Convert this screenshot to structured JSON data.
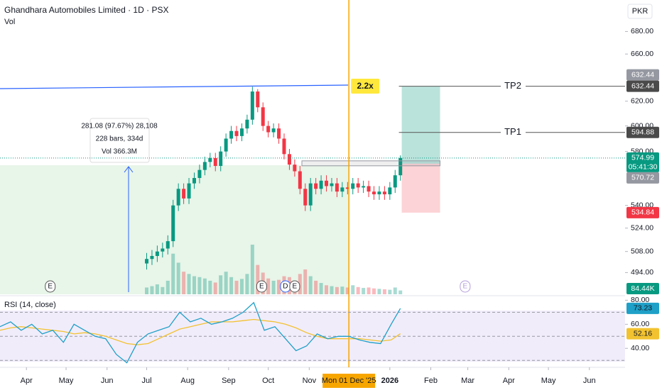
{
  "header": {
    "title": "Ghandhara Automobiles Limited · 1D · PSX",
    "volume_label": "Vol",
    "currency": "PKR",
    "rsi_label": "RSI (14, close)"
  },
  "chart_data": {
    "type": "candlestick",
    "xlim": [
      0,
      473
    ],
    "ylim": [
      480,
      709
    ],
    "log_scale": true,
    "yticks": [
      {
        "value": 680,
        "label": "680.00"
      },
      {
        "value": 660,
        "label": "660.00"
      },
      {
        "value": 620,
        "label": "620.00"
      },
      {
        "value": 600,
        "label": "600.00"
      },
      {
        "value": 580,
        "label": "580.00"
      },
      {
        "value": 540,
        "label": "540.00"
      },
      {
        "value": 524,
        "label": "524.00"
      },
      {
        "value": 508,
        "label": "508.00"
      },
      {
        "value": 494,
        "label": "494.00"
      }
    ],
    "xticks": [
      {
        "value": 20,
        "label": "Apr"
      },
      {
        "value": 50,
        "label": "May"
      },
      {
        "value": 81,
        "label": "Jun"
      },
      {
        "value": 111,
        "label": "Jul"
      },
      {
        "value": 142,
        "label": "Aug"
      },
      {
        "value": 173,
        "label": "Sep"
      },
      {
        "value": 203,
        "label": "Oct"
      },
      {
        "value": 234,
        "label": "Nov"
      },
      {
        "value": 295,
        "label": "2026"
      },
      {
        "value": 326,
        "label": "Feb"
      },
      {
        "value": 354,
        "label": "Mar"
      },
      {
        "value": 385,
        "label": "Apr"
      },
      {
        "value": 415,
        "label": "May"
      },
      {
        "value": 446,
        "label": "Jun"
      }
    ],
    "candles": {
      "up_color": "#089981",
      "down_color": "#f23645",
      "x": [
        111,
        115,
        119,
        123,
        127,
        131,
        135,
        139,
        143,
        147,
        151,
        155,
        159,
        163,
        167,
        171,
        175,
        179,
        183,
        187,
        191,
        195,
        199,
        203,
        207,
        211,
        215,
        219,
        223,
        227,
        231,
        235,
        239,
        243,
        247,
        251,
        255,
        259,
        263,
        267,
        271,
        275,
        279,
        283,
        287,
        291,
        295,
        299,
        303
      ],
      "open": [
        500,
        503,
        505,
        508,
        510,
        515,
        540,
        552,
        545,
        556,
        560,
        566,
        572,
        575,
        569,
        580,
        590,
        596,
        592,
        598,
        605,
        628,
        615,
        600,
        595,
        598,
        590,
        578,
        570,
        565,
        552,
        540,
        556,
        552,
        558,
        554,
        556,
        550,
        553,
        552,
        556,
        553,
        554,
        550,
        548,
        550,
        548,
        553,
        562
      ],
      "high": [
        507,
        509,
        512,
        514,
        519,
        544,
        556,
        556,
        560,
        564,
        570,
        576,
        579,
        579,
        584,
        594,
        600,
        600,
        602,
        609,
        632,
        630,
        619,
        604,
        602,
        602,
        594,
        582,
        574,
        569,
        556,
        560,
        560,
        562,
        562,
        560,
        560,
        557,
        557,
        560,
        560,
        558,
        558,
        554,
        554,
        554,
        557,
        566,
        577
      ],
      "low": [
        496,
        499,
        501,
        504,
        506,
        511,
        536,
        541,
        541,
        552,
        556,
        562,
        568,
        565,
        565,
        576,
        586,
        588,
        588,
        594,
        601,
        611,
        596,
        591,
        591,
        586,
        574,
        566,
        561,
        548,
        536,
        536,
        548,
        548,
        550,
        550,
        546,
        546,
        548,
        548,
        549,
        549,
        546,
        544,
        544,
        544,
        544,
        549,
        558
      ],
      "close": [
        503,
        505,
        508,
        510,
        515,
        540,
        552,
        545,
        556,
        560,
        566,
        572,
        575,
        569,
        580,
        590,
        596,
        592,
        598,
        605,
        628,
        615,
        600,
        595,
        598,
        590,
        578,
        570,
        565,
        552,
        540,
        556,
        552,
        558,
        554,
        556,
        550,
        553,
        552,
        556,
        553,
        554,
        550,
        548,
        550,
        548,
        553,
        562,
        575
      ]
    },
    "volume": {
      "values": [
        150000,
        180000,
        220000,
        160000,
        300000,
        900000,
        700000,
        500000,
        450000,
        400000,
        380000,
        350000,
        300000,
        260000,
        420000,
        500000,
        380000,
        300000,
        340000,
        450000,
        1100000,
        650000,
        480000,
        350000,
        300000,
        320000,
        400000,
        380000,
        300000,
        450000,
        550000,
        400000,
        300000,
        250000,
        200000,
        180000,
        160000,
        170000,
        150000,
        200000,
        160000,
        140000,
        150000,
        130000,
        120000,
        110000,
        100000,
        150000,
        84440
      ],
      "last_label": "84.44K"
    },
    "last_price": 574.99,
    "countdown": "05:41:30",
    "position": {
      "x_range": [
        304,
        333
      ],
      "target": 632.44,
      "entry": 570.72,
      "stop": 534.84,
      "tp1": 594.88,
      "tp1_label": "TP1",
      "tp2_label": "TP2",
      "ratio_label": "2.2x"
    },
    "crosshair": {
      "x": 264,
      "label": "Mon 01 Dec '25"
    },
    "measure": {
      "lines": [
        "281.08 (97.67%) 28,108",
        "228 bars, 334d",
        "Vol 366.3M"
      ]
    },
    "events": [
      {
        "label": "E",
        "x": 38
      },
      {
        "label": "E",
        "x": 198
      },
      {
        "label": "D",
        "x": 216
      },
      {
        "label": "E",
        "x": 223
      },
      {
        "label": "E",
        "x": 352
      }
    ],
    "rsi": {
      "color": "#1ea0c8",
      "ma_color": "#f2c230",
      "ylim": [
        26,
        82
      ],
      "bands": [
        70,
        50,
        30
      ],
      "yticks": [
        {
          "value": 80,
          "label": "80.00"
        },
        {
          "value": 60,
          "label": "60.00"
        },
        {
          "value": 40,
          "label": "40.00"
        }
      ],
      "x": [
        0,
        8,
        16,
        24,
        32,
        40,
        48,
        56,
        64,
        72,
        80,
        88,
        96,
        104,
        112,
        120,
        128,
        136,
        144,
        152,
        160,
        168,
        176,
        184,
        192,
        200,
        208,
        216,
        224,
        232,
        240,
        248,
        256,
        264,
        272,
        280,
        288,
        296,
        303
      ],
      "values": [
        58,
        62,
        55,
        60,
        52,
        55,
        45,
        60,
        55,
        50,
        48,
        35,
        28,
        45,
        52,
        55,
        58,
        70,
        62,
        65,
        60,
        62,
        65,
        70,
        78,
        55,
        58,
        48,
        38,
        42,
        52,
        48,
        50,
        50,
        47,
        45,
        44,
        60,
        73.23
      ],
      "ma": [
        55,
        57,
        58,
        57,
        56,
        55,
        54,
        52,
        53,
        52,
        50,
        47,
        44,
        43,
        44,
        48,
        52,
        56,
        58,
        60,
        62,
        62,
        62,
        63,
        64,
        63,
        62,
        60,
        57,
        53,
        50,
        48,
        48,
        48,
        48,
        47,
        46,
        47,
        52.16
      ]
    }
  }
}
